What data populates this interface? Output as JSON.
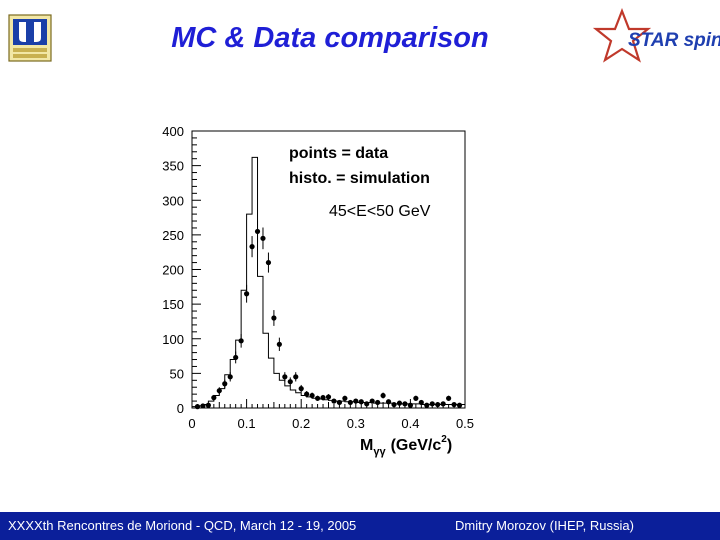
{
  "slide": {
    "title": "MC & Data comparison",
    "footer_left": "XXXXth Rencontres de Moriond - QCD, March 12 - 19, 2005",
    "footer_right": "Dmitry Morozov (IHEP, Russia)",
    "logo_right_text": "STAR spin",
    "colors": {
      "title": "#1f1fd6",
      "footer_bg": "#0b1f9a",
      "logo_star": "#c0392b"
    }
  },
  "chart_data": {
    "type": "scatter",
    "legend_lines": [
      "points = data",
      "histo. = simulation"
    ],
    "annotation": "45<E<50 GeV",
    "xlabel": "M",
    "xlabel_sub": "γγ",
    "xlabel_units": "(GeV/c",
    "xlabel_sup": "2",
    "xlabel_close": ")",
    "xlim": [
      0,
      0.5
    ],
    "ylim": [
      0,
      400
    ],
    "x_ticks": [
      "0",
      "0.1",
      "0.2",
      "0.3",
      "0.4",
      "0.5"
    ],
    "y_ticks": [
      "0",
      "50",
      "100",
      "150",
      "200",
      "250",
      "300",
      "350",
      "400"
    ],
    "series": [
      {
        "kind": "points",
        "x": [
          0.01,
          0.02,
          0.03,
          0.04,
          0.05,
          0.06,
          0.07,
          0.08,
          0.09,
          0.1,
          0.11,
          0.12,
          0.13,
          0.14,
          0.15,
          0.16,
          0.17,
          0.18,
          0.19,
          0.2,
          0.21,
          0.22,
          0.23,
          0.24,
          0.25,
          0.26,
          0.27,
          0.28,
          0.29,
          0.3,
          0.31,
          0.32,
          0.33,
          0.34,
          0.35,
          0.36,
          0.37,
          0.38,
          0.39,
          0.4,
          0.41,
          0.42,
          0.43,
          0.44,
          0.45,
          0.46,
          0.47,
          0.48,
          0.49
        ],
        "y": [
          2,
          3,
          4,
          15,
          25,
          35,
          45,
          73,
          97,
          165,
          233,
          255,
          245,
          210,
          130,
          92,
          45,
          38,
          45,
          28,
          20,
          18,
          14,
          15,
          16,
          10,
          8,
          14,
          8,
          10,
          9,
          6,
          10,
          8,
          18,
          9,
          5,
          7,
          6,
          4,
          14,
          8,
          4,
          6,
          5,
          6,
          14,
          5,
          4
        ]
      },
      {
        "kind": "histogram",
        "edges": [
          0.0,
          0.01,
          0.02,
          0.03,
          0.04,
          0.05,
          0.06,
          0.07,
          0.08,
          0.09,
          0.1,
          0.11,
          0.12,
          0.13,
          0.14,
          0.15,
          0.16,
          0.17,
          0.18,
          0.19,
          0.2,
          0.21,
          0.22,
          0.23,
          0.24,
          0.25,
          0.26,
          0.27,
          0.28,
          0.29,
          0.3,
          0.31,
          0.32,
          0.33,
          0.34,
          0.35,
          0.36,
          0.37,
          0.38,
          0.39,
          0.4,
          0.41,
          0.42,
          0.43,
          0.44,
          0.45,
          0.46,
          0.47,
          0.48,
          0.49,
          0.5
        ],
        "values": [
          2,
          3,
          5,
          10,
          18,
          28,
          48,
          70,
          98,
          170,
          280,
          362,
          190,
          108,
          72,
          50,
          40,
          32,
          26,
          22,
          18,
          16,
          14,
          13,
          12,
          11,
          10,
          10,
          9,
          9,
          8,
          8,
          8,
          7,
          7,
          7,
          7,
          6,
          6,
          6,
          6,
          6,
          5,
          5,
          5,
          5,
          5,
          5,
          5,
          5
        ]
      }
    ]
  }
}
